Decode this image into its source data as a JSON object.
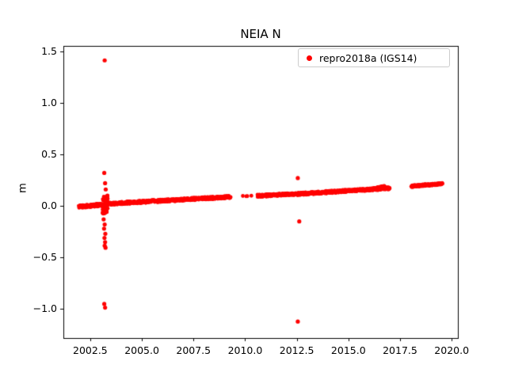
{
  "chart_data": {
    "type": "scatter",
    "title": "NEIA N",
    "xlabel": "",
    "ylabel": "m",
    "series_name": "repro2018a (IGS14)",
    "color": "#ff0000",
    "legend_position": "upper right",
    "grid": false,
    "xlim": [
      2001.2,
      2020.3
    ],
    "ylim": [
      -1.28,
      1.55
    ],
    "x_ticks": [
      2002.5,
      2005.0,
      2007.5,
      2010.0,
      2012.5,
      2015.0,
      2017.5,
      2020.0
    ],
    "x_tick_labels": [
      "2002.5",
      "2005.0",
      "2007.5",
      "2010.0",
      "2012.5",
      "2015.0",
      "2017.5",
      "2020.0"
    ],
    "y_ticks": [
      -1.0,
      -0.5,
      0.0,
      0.5,
      1.0,
      1.5
    ],
    "y_tick_labels": [
      "−1.0",
      "−0.5",
      "0.0",
      "0.5",
      "1.0",
      "1.5"
    ],
    "trend_segments": [
      {
        "x0": 2001.95,
        "x1": 2003.1,
        "y0": -0.008,
        "y1": 0.012,
        "n": 110,
        "jitter": 0.013
      },
      {
        "x0": 2003.1,
        "x1": 2003.35,
        "y0": 0.0,
        "y1": 0.03,
        "n": 90,
        "jitter": 0.085
      },
      {
        "x0": 2003.35,
        "x1": 2009.3,
        "y0": 0.02,
        "y1": 0.088,
        "n": 460,
        "jitter": 0.012
      },
      {
        "x0": 2009.9,
        "x1": 2010.25,
        "y0": 0.093,
        "y1": 0.098,
        "n": 4,
        "jitter": 0.004
      },
      {
        "x0": 2010.6,
        "x1": 2012.45,
        "y0": 0.098,
        "y1": 0.115,
        "n": 150,
        "jitter": 0.011
      },
      {
        "x0": 2012.5,
        "x1": 2017.0,
        "y0": 0.115,
        "y1": 0.172,
        "n": 360,
        "jitter": 0.012
      },
      {
        "x0": 2016.35,
        "x1": 2016.75,
        "y0": 0.17,
        "y1": 0.185,
        "n": 50,
        "jitter": 0.01
      },
      {
        "x0": 2018.05,
        "x1": 2019.55,
        "y0": 0.19,
        "y1": 0.215,
        "n": 150,
        "jitter": 0.009
      }
    ],
    "outliers": [
      [
        2003.2,
        1.41
      ],
      [
        2003.18,
        0.32
      ],
      [
        2003.22,
        0.22
      ],
      [
        2003.25,
        0.16
      ],
      [
        2003.15,
        -0.13
      ],
      [
        2003.2,
        -0.18
      ],
      [
        2003.17,
        -0.22
      ],
      [
        2003.23,
        -0.27
      ],
      [
        2003.19,
        -0.31
      ],
      [
        2003.22,
        -0.35
      ],
      [
        2003.2,
        -0.385
      ],
      [
        2003.24,
        -0.405
      ],
      [
        2003.18,
        -0.95
      ],
      [
        2003.22,
        -0.985
      ],
      [
        2012.55,
        0.27
      ],
      [
        2012.62,
        -0.15
      ],
      [
        2012.55,
        -1.12
      ]
    ]
  }
}
